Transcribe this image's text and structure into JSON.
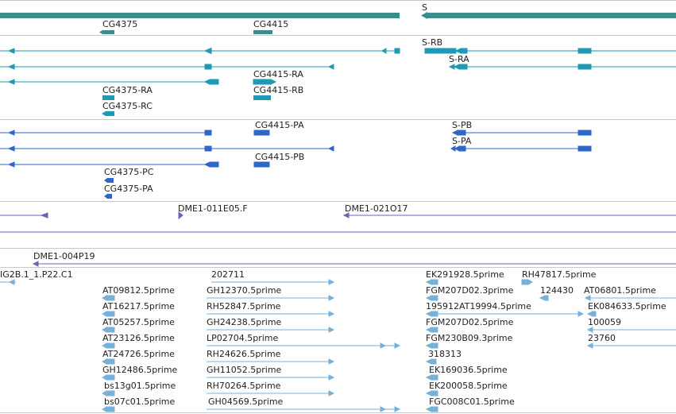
{
  "colors": {
    "gene": "#3c8c8c",
    "mrna": "#1e9ab4",
    "protein": "#3066c8",
    "clone": "#7a5cb4",
    "est": "#78b0d8",
    "divider": "#c8c8c8"
  },
  "genes": {
    "cg4375": "CG4375",
    "cg4415": "CG4415",
    "s": "S"
  },
  "transcripts": {
    "s_rb": "S-RB",
    "s_ra": "S-RA",
    "cg4415_ra": "CG4415-RA",
    "cg4375_ra": "CG4375-RA",
    "cg4415_rb": "CG4415-RB",
    "cg4375_rc": "CG4375-RC"
  },
  "proteins": {
    "cg4415_pa": "CG4415-PA",
    "s_pb": "S-PB",
    "s_pa": "S-PA",
    "cg4415_pb": "CG4415-PB",
    "cg4375_pc": "CG4375-PC",
    "cg4375_pa": "CG4375-PA"
  },
  "clones": {
    "c1": "DME1-011E05.F",
    "c2": "DME1-021O17",
    "c3": "DME1-004P19"
  },
  "ests": {
    "e_ig2b": "IG2B.1_1.P22.C1",
    "e_202711": "202711",
    "e_ek291928": "EK291928.5prime",
    "e_rh47817": "RH47817.5prime",
    "e_at09812": "AT09812.5prime",
    "e_gh12370": "GH12370.5prime",
    "e_fgm207d023": "FGM207D02.3prime",
    "e_124430": "124430",
    "e_at06801": "AT06801.5prime",
    "e_at16217": "AT16217.5prime",
    "e_rh52847": "RH52847.5prime",
    "e_195912at19994": "195912AT19994.5prime",
    "e_ek084633": "EK084633.5prime",
    "e_at05257": "AT05257.5prime",
    "e_gh24238": "GH24238.5prime",
    "e_fgm207d025": "FGM207D02.5prime",
    "e_100059": "100059",
    "e_at23126": "AT23126.5prime",
    "e_lp02704": "LP02704.5prime",
    "e_fgm230b09": "FGM230B09.3prime",
    "e_23760": "23760",
    "e_at24726": "AT24726.5prime",
    "e_rh24626": "RH24626.5prime",
    "e_318313": "318313",
    "e_gh12486": "GH12486.5prime",
    "e_gh11052": "GH11052.5prime",
    "e_ek169036": "EK169036.5prime",
    "e_bs13g01": "bs13g01.5prime",
    "e_rh70264": "RH70264.5prime",
    "e_ek200058": "EK200058.5prime",
    "e_bs07c01": "bs07c01.5prime",
    "e_gh04569": "GH04569.5prime",
    "e_fgc008c01": "FGC008C01.5prime"
  }
}
